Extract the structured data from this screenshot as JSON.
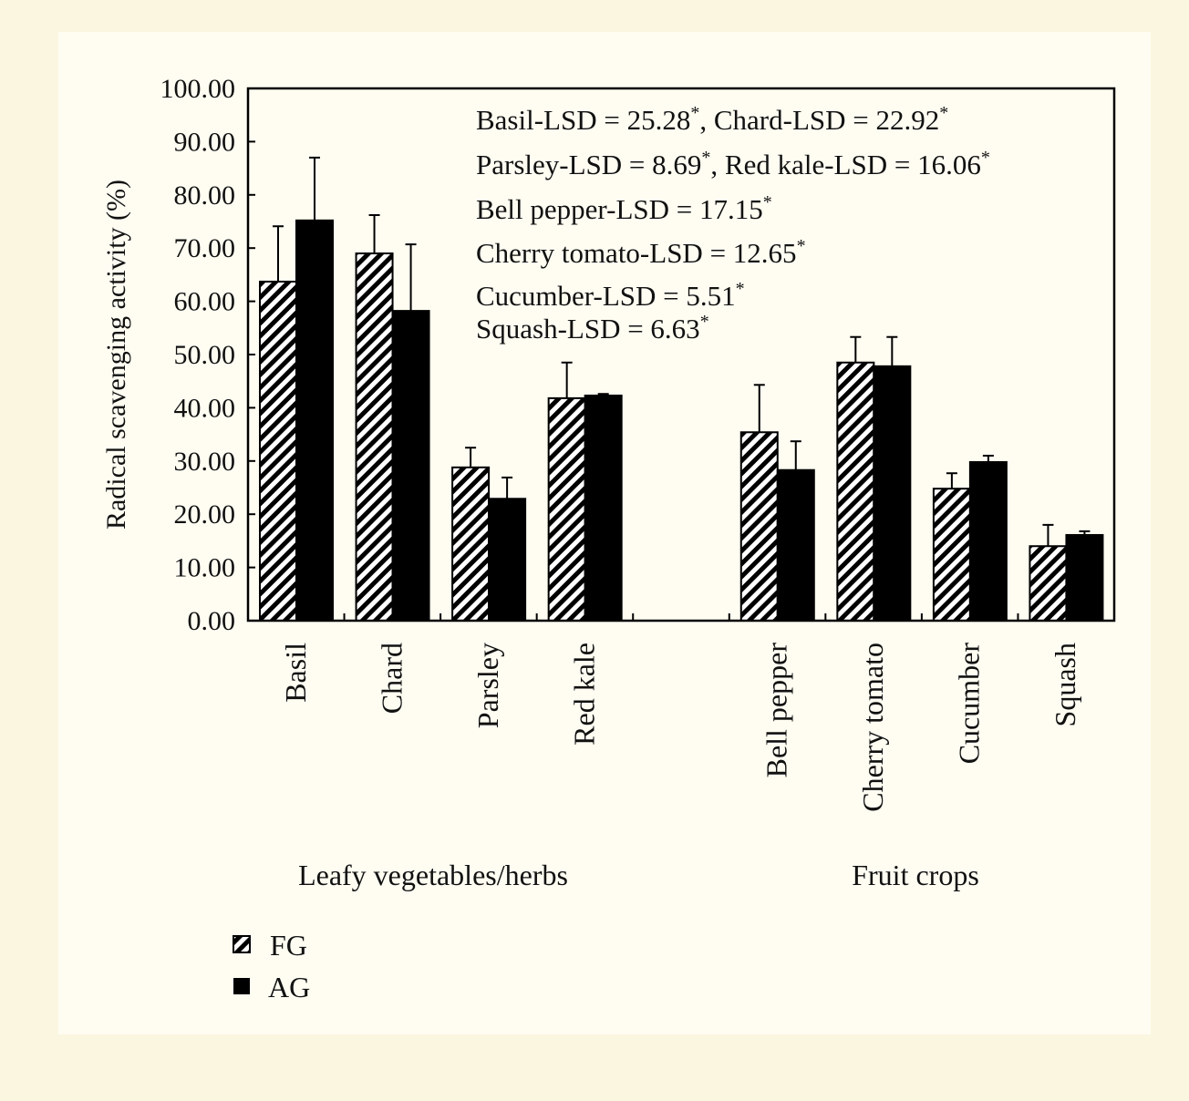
{
  "chart_data": {
    "type": "bar",
    "ylabel": "Radical scavenging activity (%)",
    "ylim": [
      0,
      100
    ],
    "yticks": [
      "0.00",
      "10.00",
      "20.00",
      "30.00",
      "40.00",
      "50.00",
      "60.00",
      "70.00",
      "80.00",
      "90.00",
      "100.00"
    ],
    "categories": [
      "Basil",
      "Chard",
      "Parsley",
      "Red kale",
      "",
      "Bell pepper",
      "Cherry tomato",
      "Cucumber",
      "Squash"
    ],
    "groups": [
      {
        "label": "Leafy vegetables/herbs"
      },
      {
        "label": "Fruit crops"
      }
    ],
    "series": [
      {
        "name": "FG",
        "pattern": "hatched",
        "values": [
          63.7,
          69.0,
          28.8,
          41.8,
          null,
          35.4,
          48.5,
          24.8,
          14.0
        ],
        "error_upper": [
          74.1,
          76.2,
          32.5,
          48.5,
          null,
          44.3,
          53.3,
          27.7,
          18.0
        ]
      },
      {
        "name": "AG",
        "pattern": "solid",
        "values": [
          75.2,
          58.2,
          22.9,
          42.3,
          null,
          28.3,
          47.8,
          29.8,
          16.1
        ],
        "error_upper": [
          87.0,
          70.7,
          26.9,
          42.6,
          null,
          33.7,
          53.3,
          31.0,
          16.8
        ]
      }
    ],
    "annotations": [
      {
        "text": "Basil-LSD = 25.28",
        "star": "*",
        "text2": ", Chard-LSD = 22.92",
        "star2": "*"
      },
      {
        "text": "Parsley-LSD = 8.69",
        "star": "*",
        "text2": ", Red kale-LSD = 16.06",
        "star2": "*"
      },
      {
        "text": "Bell pepper-LSD = 17.15",
        "star": "*"
      },
      {
        "text": "Cherry tomato-LSD = 12.65",
        "star": "*"
      },
      {
        "text": "Cucumber-LSD = 5.51",
        "star": "*"
      },
      {
        "text": "Squash-LSD  = 6.63",
        "star": "*"
      }
    ],
    "legend": {
      "placement": "bottom-left",
      "items": [
        "FG",
        "AG"
      ]
    },
    "colors": {
      "bar": "#000000",
      "background": "#fffdf2"
    }
  }
}
